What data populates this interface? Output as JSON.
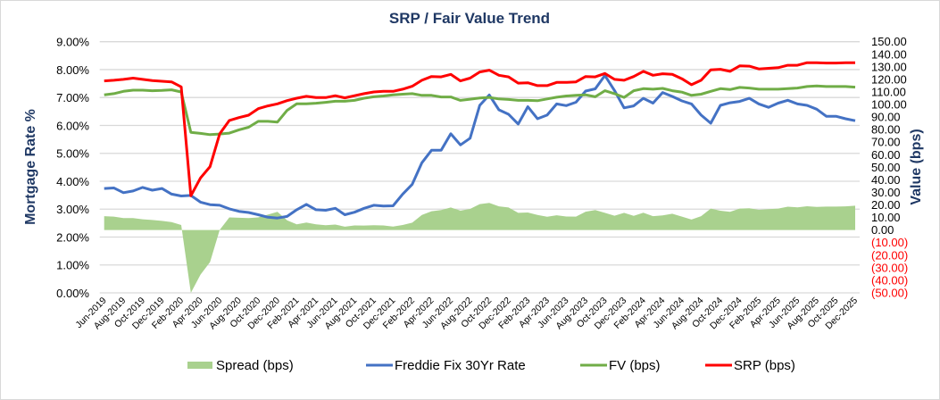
{
  "chart_data": {
    "type": "line",
    "title": "SRP / Fair Value Trend",
    "ylabel_left": "Mortgage Rate %",
    "ylabel_right": "Value (bps)",
    "ylim_left": [
      0,
      9
    ],
    "ylim_right": [
      -50,
      150
    ],
    "left_ticks": [
      "0.00%",
      "1.00%",
      "2.00%",
      "3.00%",
      "4.00%",
      "5.00%",
      "6.00%",
      "7.00%",
      "8.00%",
      "9.00%"
    ],
    "right_ticks": [
      "(50.00)",
      "(40.00)",
      "(30.00)",
      "(20.00)",
      "(10.00)",
      "0.00",
      "10.00",
      "20.00",
      "30.00",
      "40.00",
      "50.00",
      "60.00",
      "70.00",
      "80.00",
      "90.00",
      "100.00",
      "110.00",
      "120.00",
      "130.00",
      "140.00",
      "150.00"
    ],
    "x_tick_labels": [
      "Jun-2019",
      "Aug-2019",
      "Oct-2019",
      "Dec-2019",
      "Feb-2020",
      "Apr-2020",
      "Jun-2020",
      "Aug-2020",
      "Oct-2020",
      "Dec-2020",
      "Feb-2021",
      "Apr-2021",
      "Jun-2021",
      "Aug-2021",
      "Oct-2021",
      "Dec-2021",
      "Feb-2022",
      "Apr-2022",
      "Jun-2022",
      "Aug-2022",
      "Oct-2022",
      "Dec-2022",
      "Feb-2023",
      "Apr-2023",
      "Jun-2023",
      "Aug-2023",
      "Oct-2023",
      "Dec-2023",
      "Feb-2024",
      "Apr-2024",
      "Jun-2024",
      "Aug-2024",
      "Oct-2024",
      "Dec-2024",
      "Feb-2025",
      "Apr-2025",
      "Jun-2025",
      "Aug-2025",
      "Oct-2025",
      "Dec-2025"
    ],
    "x_range": [
      "Jun-2019",
      "Dec-2025"
    ],
    "x_frequency": "monthly",
    "grid": "horizontal",
    "legend_position": "bottom",
    "series": [
      {
        "name": "Spread (bps)",
        "type": "area",
        "axis": "right",
        "color": "#a9d18e",
        "values": [
          11.1,
          10.7,
          9.5,
          9.6,
          8.6,
          8.0,
          7.3,
          6.3,
          4.0,
          -50.0,
          -35.5,
          -25.5,
          0.1,
          10.1,
          9.8,
          9.6,
          10.1,
          12.3,
          14.5,
          7.8,
          4.5,
          6.0,
          4.5,
          3.8,
          4.4,
          2.7,
          3.7,
          3.6,
          3.9,
          3.7,
          2.8,
          4.0,
          5.9,
          12.0,
          15.0,
          16.0,
          18.0,
          15.5,
          16.8,
          20.7,
          21.7,
          18.9,
          18.0,
          13.7,
          14.0,
          12.0,
          10.6,
          11.8,
          10.8,
          10.7,
          14.6,
          15.9,
          13.7,
          11.4,
          13.7,
          11.3,
          13.8,
          11.1,
          11.7,
          13.0,
          10.7,
          8.4,
          11.1,
          17.1,
          15.4,
          14.5,
          17.1,
          17.4,
          16.1,
          16.6,
          17.1,
          18.6,
          18.1,
          19.0,
          18.5,
          18.7,
          18.7,
          18.9,
          19.4
        ]
      },
      {
        "name": "Freddie Fix 30Yr Rate",
        "type": "line",
        "axis": "left",
        "color": "#4472c4",
        "values": [
          3.74,
          3.76,
          3.59,
          3.65,
          3.78,
          3.68,
          3.74,
          3.54,
          3.47,
          3.49,
          3.25,
          3.16,
          3.14,
          3.01,
          2.92,
          2.88,
          2.8,
          2.71,
          2.68,
          2.74,
          2.98,
          3.17,
          2.98,
          2.96,
          3.03,
          2.8,
          2.89,
          3.03,
          3.14,
          3.11,
          3.12,
          3.54,
          3.89,
          4.66,
          5.11,
          5.11,
          5.7,
          5.3,
          5.54,
          6.72,
          7.09,
          6.56,
          6.4,
          6.05,
          6.67,
          6.24,
          6.37,
          6.77,
          6.71,
          6.83,
          7.23,
          7.31,
          7.79,
          7.25,
          6.63,
          6.7,
          6.97,
          6.8,
          7.18,
          7.04,
          6.88,
          6.77,
          6.37,
          6.08,
          6.72,
          6.81,
          6.86,
          6.97,
          6.77,
          6.65,
          6.8,
          6.9,
          6.77,
          6.72,
          6.58,
          6.33,
          6.33,
          6.24,
          6.17
        ]
      },
      {
        "name": "FV (bps)",
        "type": "line",
        "axis": "right",
        "color": "#70ad47",
        "values": [
          107.7,
          108.6,
          110.5,
          111.4,
          111.4,
          111.0,
          111.2,
          111.7,
          110.0,
          77.8,
          77.0,
          76.0,
          76.5,
          77.2,
          79.8,
          81.9,
          86.6,
          86.6,
          86.0,
          95.3,
          100.5,
          100.5,
          101.0,
          101.7,
          102.6,
          102.6,
          103.3,
          105.0,
          106.1,
          106.8,
          107.7,
          108.2,
          108.6,
          107.3,
          107.3,
          106.0,
          106.0,
          103.3,
          104.2,
          105.2,
          105.6,
          104.4,
          104.0,
          103.3,
          103.3,
          103.0,
          104.4,
          105.8,
          106.8,
          107.3,
          107.7,
          106.1,
          111.0,
          108.6,
          105.6,
          111.0,
          112.6,
          112.2,
          112.8,
          111.0,
          109.8,
          107.3,
          108.2,
          110.5,
          112.6,
          111.9,
          113.6,
          113.1,
          112.2,
          112.2,
          112.2,
          112.6,
          113.1,
          114.3,
          114.8,
          114.3,
          114.3,
          114.3,
          113.8
        ]
      },
      {
        "name": "SRP (bps)",
        "type": "line",
        "axis": "right",
        "color": "#ff0000",
        "values": [
          118.8,
          119.3,
          120.0,
          121.0,
          120.0,
          119.0,
          118.5,
          118.0,
          114.0,
          27.3,
          41.5,
          50.5,
          76.6,
          87.3,
          89.6,
          91.5,
          96.7,
          98.9,
          100.5,
          103.1,
          105.0,
          106.5,
          105.5,
          105.5,
          107.0,
          105.3,
          107.0,
          108.6,
          110.0,
          110.5,
          110.5,
          112.2,
          114.5,
          119.3,
          122.3,
          122.0,
          124.0,
          118.8,
          121.0,
          125.9,
          127.3,
          123.3,
          122.0,
          117.0,
          117.3,
          115.0,
          115.0,
          117.6,
          117.6,
          118.0,
          122.3,
          122.0,
          124.7,
          120.0,
          119.3,
          122.3,
          126.4,
          123.3,
          124.5,
          124.0,
          120.5,
          115.7,
          119.3,
          127.6,
          128.0,
          126.4,
          130.7,
          130.5,
          128.3,
          128.8,
          129.3,
          131.2,
          131.2,
          133.3,
          133.3,
          133.0,
          133.0,
          133.2,
          133.2
        ]
      }
    ]
  }
}
